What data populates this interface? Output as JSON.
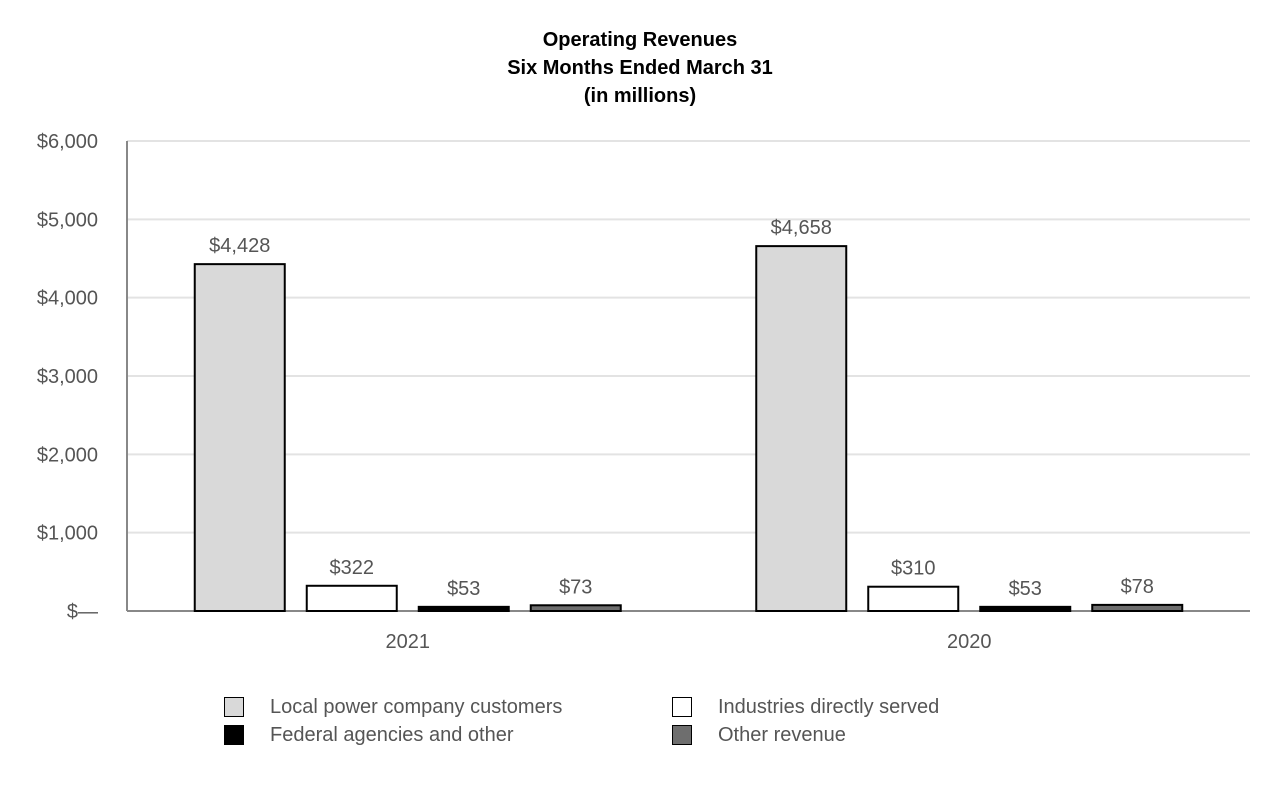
{
  "chart_data": {
    "type": "bar",
    "title": "Operating Revenues",
    "subtitle": "Six Months Ended March 31",
    "unit_note": "(in millions)",
    "categories": [
      "2021",
      "2020"
    ],
    "series": [
      {
        "name": "Local power company customers",
        "color": "#d9d9d9",
        "values": [
          4428,
          4658
        ],
        "labels": [
          "$4,428",
          "$4,658"
        ]
      },
      {
        "name": "Industries directly served",
        "color": "#ffffff",
        "values": [
          322,
          310
        ],
        "labels": [
          "$322",
          "$310"
        ]
      },
      {
        "name": "Federal agencies and other",
        "color": "#000000",
        "values": [
          53,
          53
        ],
        "labels": [
          "$53",
          "$53"
        ]
      },
      {
        "name": "Other revenue",
        "color": "#6e6e6e",
        "values": [
          73,
          78
        ],
        "labels": [
          "$73",
          "$78"
        ]
      }
    ],
    "ylim": [
      0,
      6000
    ],
    "yticks": [
      0,
      1000,
      2000,
      3000,
      4000,
      5000,
      6000
    ],
    "ytick_labels": [
      "$—",
      "$1,000",
      "$2,000",
      "$3,000",
      "$4,000",
      "$5,000",
      "$6,000"
    ],
    "grid": true,
    "legend_position": "bottom"
  }
}
